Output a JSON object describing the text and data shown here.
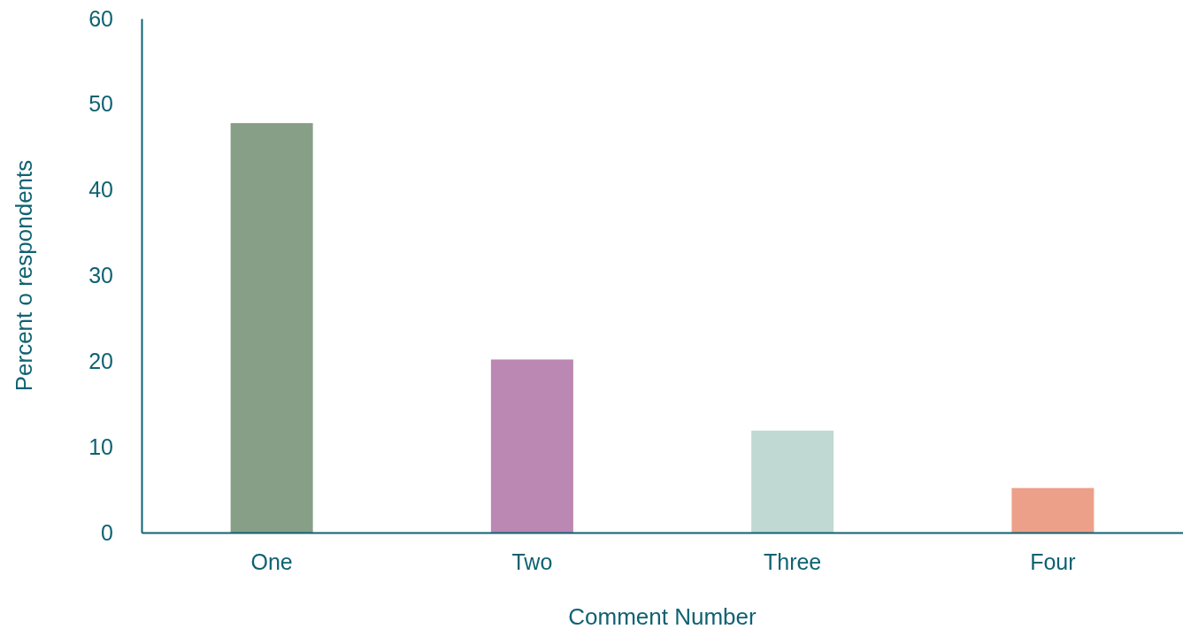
{
  "chart_data": {
    "type": "bar",
    "xlabel": "Comment Number",
    "ylabel": "Percent o respondents",
    "categories": [
      "One",
      "Two",
      "Three",
      "Four"
    ],
    "values": [
      47.8,
      20.2,
      11.9,
      5.2
    ],
    "colors": [
      "#879e87",
      "#bb87b3",
      "#c0d9d2",
      "#eda089"
    ],
    "ylim": [
      0,
      60
    ],
    "yticks": [
      0,
      10,
      20,
      30,
      40,
      50,
      60
    ],
    "grid": false
  }
}
